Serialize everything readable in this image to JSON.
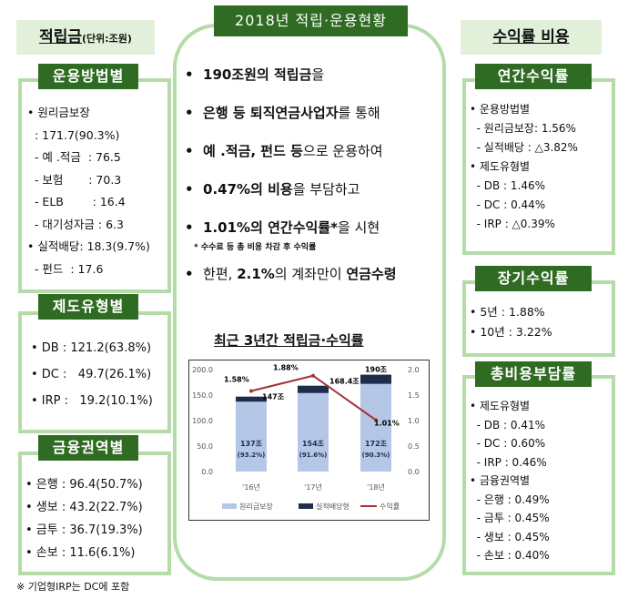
{
  "left": {
    "category": "적립금",
    "unit": "(단위:조원)",
    "sections": [
      {
        "title": "운용방법별",
        "lines": [
          "• 원리금보장",
          "  : 171.7(90.3%)",
          "  - 예 .적금  : 76.5",
          "  - 보험       : 70.3",
          "  - ELB        : 16.4",
          "  - 대기성자금 : 6.3",
          "• 실적배당: 18.3(9.7%)",
          "  - 펀드  : 17.6"
        ]
      },
      {
        "title": "제도유형별",
        "lines": [
          "• DB : 121.2(63.8%)",
          "• DC :   49.7(26.1%)",
          "• IRP :   19.2(10.1%)"
        ]
      },
      {
        "title": "금융권역별",
        "lines": [
          "• 은행 : 96.4(50.7%)",
          "• 생보 : 43.2(22.7%)",
          "• 금투 : 36.7(19.3%)",
          "• 손보 : 11.6(6.1%)"
        ]
      }
    ],
    "footnote": "※ 기업형IRP는 DC에 포함"
  },
  "center": {
    "title": "2018년 적립·운용현황",
    "bullets": [
      {
        "b": "190조원의 적립금",
        "n": "을"
      },
      {
        "b": "은행 등 퇴직연금사업자",
        "n": "를 통해"
      },
      {
        "b": "예 .적금, 펀드 등",
        "n": "으로 운용하여"
      },
      {
        "b": "0.47%의 비용",
        "n": "을 부담하고"
      },
      {
        "b": "1.01%의 연간수익률*",
        "n": "을 시현"
      },
      {
        "b": "",
        "n": "한편, ",
        "b2": "2.1%",
        "n2": "의 계좌만이 ",
        "b3": "연금수령"
      }
    ],
    "note": "* 수수료 등 총 비용 차감 후 수익률",
    "chart_title": "최근 3년간 적립금·수익률"
  },
  "chart_data": {
    "type": "bar",
    "title": "최근 3년간 적립금·수익률",
    "categories": [
      "'16년",
      "'17년",
      "'18년"
    ],
    "series": [
      {
        "name": "원리금보장",
        "type": "stacked-bar",
        "values": [
          137,
          154,
          172
        ],
        "labels": [
          "137조",
          "154조",
          "172조"
        ],
        "sublabels": [
          "(93.2%)",
          "(91.6%)",
          "(90.3%)"
        ],
        "color": "#b4c7e7"
      },
      {
        "name": "실적배당형",
        "type": "stacked-bar",
        "values": [
          10,
          14.4,
          18
        ],
        "totals": [
          "147조",
          "168.4조",
          "190조"
        ],
        "color": "#1f2d4d"
      },
      {
        "name": "수익률",
        "type": "line",
        "axis": "right",
        "values": [
          1.58,
          1.88,
          1.01
        ],
        "labels": [
          "1.58%",
          "1.88%",
          "1.01%"
        ],
        "color": "#a33333"
      }
    ],
    "ylim": [
      0,
      200
    ],
    "yticks": [
      "0.0",
      "50.0",
      "100.0",
      "150.0",
      "200.0"
    ],
    "y2lim": [
      0,
      2.0
    ],
    "y2ticks": [
      "0.0",
      "0.5",
      "1.0",
      "1.5",
      "2.0"
    ],
    "legend": "bottom",
    "grid": false
  },
  "right": {
    "category": "수익률 비용",
    "sections": [
      {
        "title": "연간수익률",
        "lines": [
          "• 운용방법별",
          "  - 원리금보장: 1.56%",
          "  - 실적배당 : △3.82%",
          "• 제도유형별",
          "  - DB : 1.46%",
          "  - DC : 0.44%",
          "  - IRP : △0.39%"
        ]
      },
      {
        "title": "장기수익률",
        "lines": [
          "• 5년 : 1.88%",
          "• 10년 : 3.22%"
        ]
      },
      {
        "title": "총비용부담률",
        "lines": [
          "• 제도유형별",
          "  - DB : 0.41%",
          "  - DC : 0.60%",
          "  - IRP : 0.46%",
          "• 금융권역별",
          "  - 은행 : 0.49%",
          "  - 금투 : 0.45%",
          "  - 생보 : 0.45%",
          "  - 손보 : 0.40%"
        ]
      }
    ]
  }
}
